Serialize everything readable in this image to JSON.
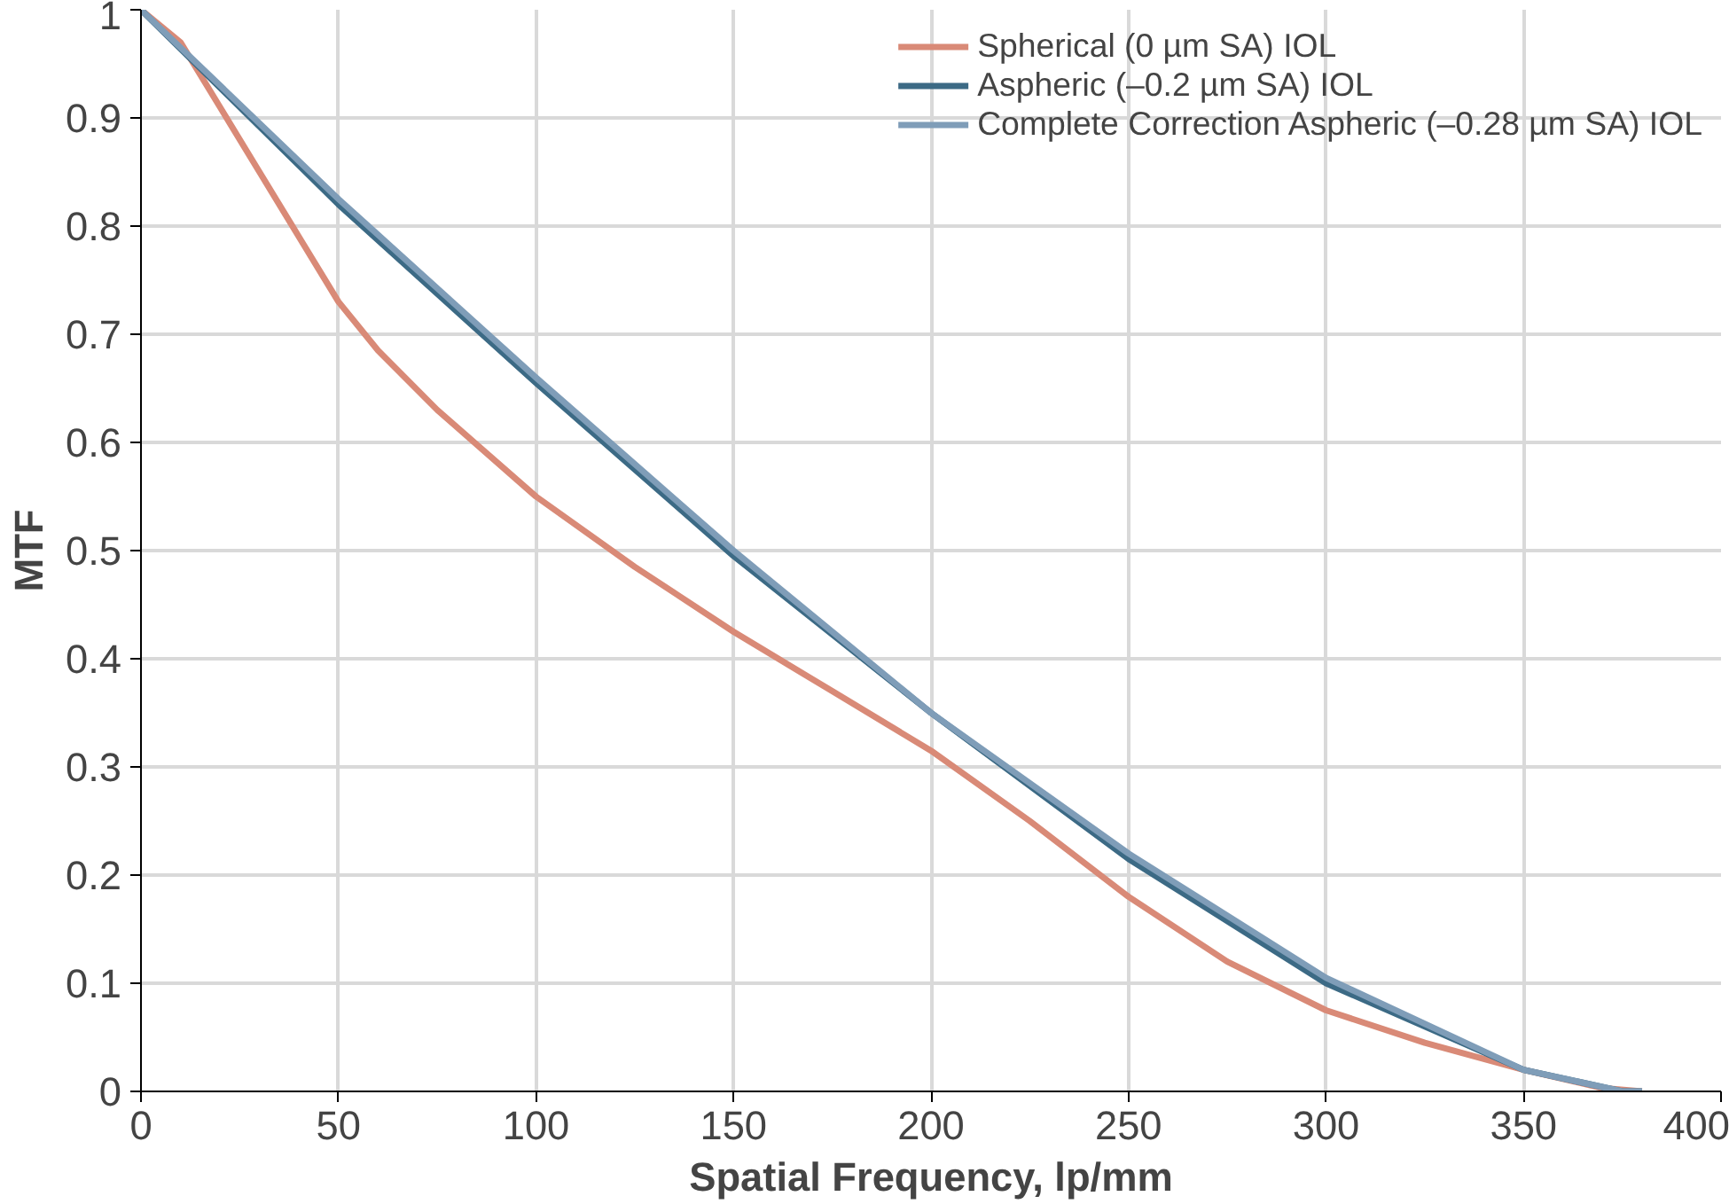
{
  "chart_data": {
    "type": "line",
    "xlabel": "Spatial Frequency, lp/mm",
    "ylabel": "MTF",
    "xlim": [
      0,
      400
    ],
    "ylim": [
      0,
      1
    ],
    "xticks": [
      0,
      50,
      100,
      150,
      200,
      250,
      300,
      350,
      400
    ],
    "yticks": [
      0,
      0.1,
      0.2,
      0.3,
      0.4,
      0.5,
      0.6,
      0.7,
      0.8,
      0.9,
      1
    ],
    "grid": true,
    "legend": "top right",
    "line_style": "solid",
    "series": [
      {
        "name": "Spherical (0 µm SA) IOL",
        "color": "#d98a77",
        "x": [
          0,
          10,
          20,
          30,
          40,
          50,
          60,
          75,
          100,
          125,
          150,
          175,
          200,
          225,
          250,
          275,
          300,
          325,
          350,
          370,
          380
        ],
        "values": [
          1,
          0.97,
          0.91,
          0.85,
          0.79,
          0.73,
          0.685,
          0.63,
          0.55,
          0.485,
          0.425,
          0.37,
          0.315,
          0.25,
          0.18,
          0.12,
          0.075,
          0.045,
          0.02,
          0.003,
          0
        ]
      },
      {
        "name": "Aspheric (–0.2 µm SA) IOL",
        "color": "#3c6a85",
        "x": [
          0,
          50,
          100,
          150,
          200,
          250,
          300,
          350,
          375,
          380
        ],
        "values": [
          1,
          0.82,
          0.655,
          0.495,
          0.35,
          0.215,
          0.1,
          0.02,
          0,
          0
        ]
      },
      {
        "name": "Complete Correction Aspheric (–0.28 µm SA) IOL",
        "color": "#7f9db8",
        "x": [
          0,
          50,
          100,
          150,
          200,
          250,
          300,
          350,
          375,
          380
        ],
        "values": [
          1,
          0.825,
          0.66,
          0.5,
          0.35,
          0.22,
          0.105,
          0.02,
          0,
          0
        ]
      }
    ]
  }
}
